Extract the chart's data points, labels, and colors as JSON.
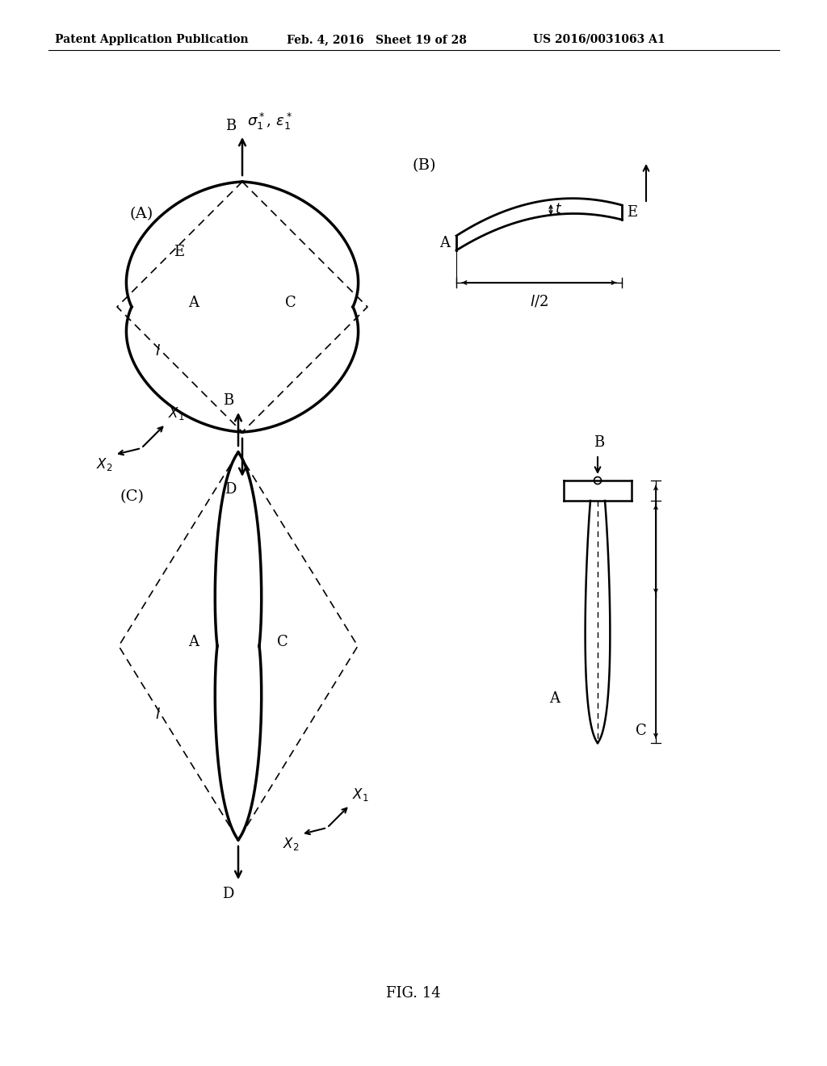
{
  "header_left": "Patent Application Publication",
  "header_mid": "Feb. 4, 2016   Sheet 19 of 28",
  "header_right": "US 2016/0031063 A1",
  "caption": "FIG. 14",
  "bg_color": "#ffffff",
  "text_color": "#000000"
}
